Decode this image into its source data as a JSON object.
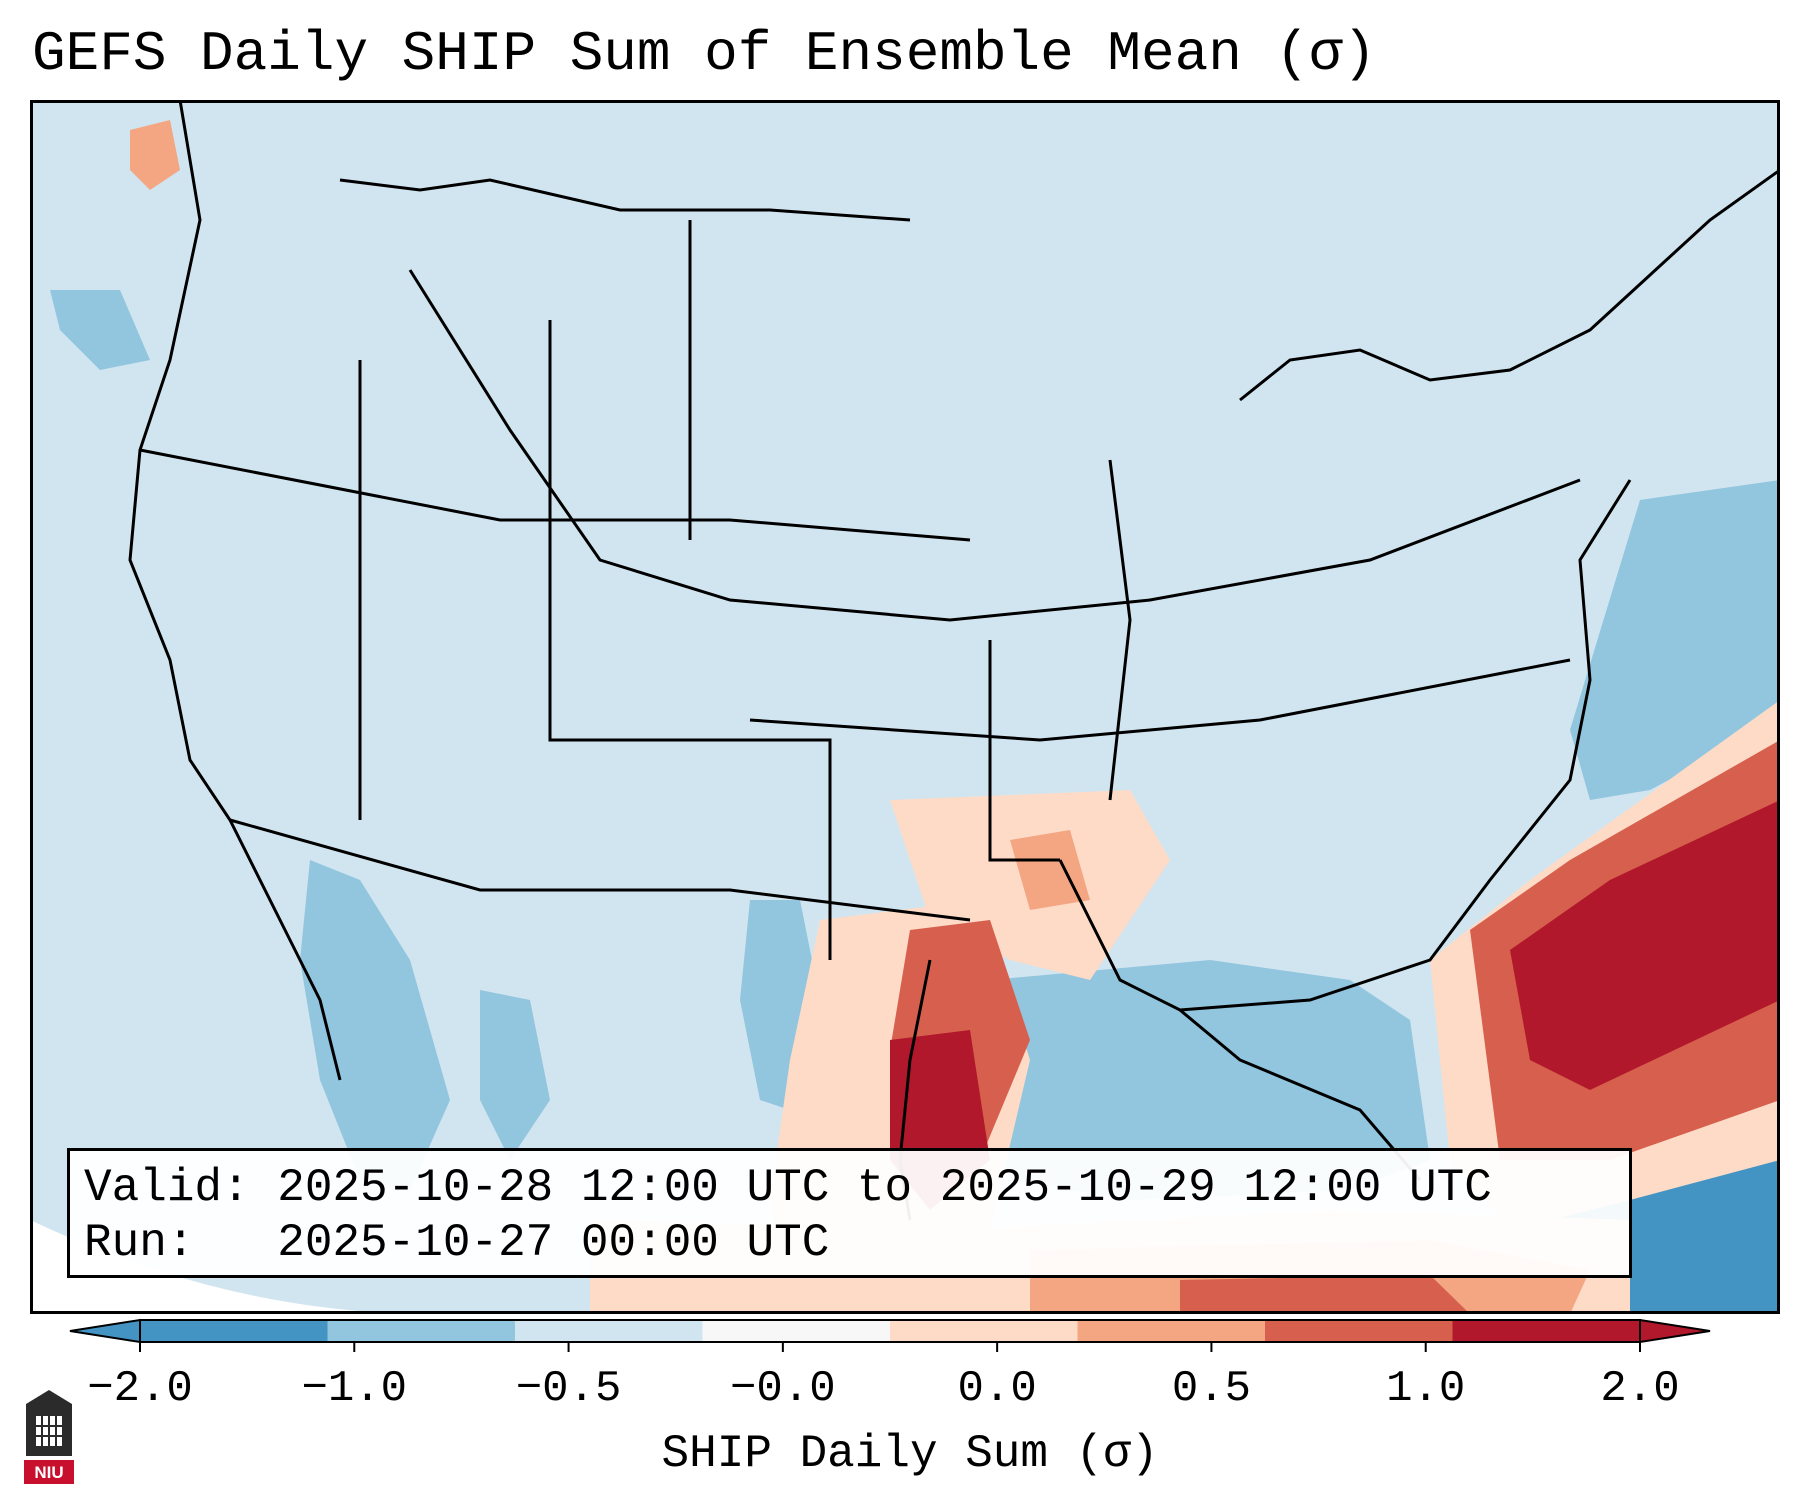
{
  "title": "GEFS Daily SHIP Sum of Ensemble Mean (σ)",
  "info": {
    "valid_line": "Valid: 2025-10-28 12:00 UTC to 2025-10-29 12:00 UTC",
    "run_line": "Run:   2025-10-27 00:00 UTC"
  },
  "colorbar": {
    "label": "SHIP Daily Sum (σ)",
    "ticks": [
      "−2.0",
      "−1.0",
      "−0.5",
      "−0.0",
      "0.0",
      "0.5",
      "1.0",
      "2.0"
    ],
    "colors": [
      "#4393c3",
      "#92c5de",
      "#d1e5f0",
      "#f7f7f7",
      "#fddbc7",
      "#f4a582",
      "#d6604d",
      "#b2182b"
    ],
    "extend": "both"
  },
  "logo": {
    "text": "NIU"
  },
  "map": {
    "region": "Contiguous United States",
    "background_color": "#d1e5f0",
    "max_color": "#b2182b"
  }
}
